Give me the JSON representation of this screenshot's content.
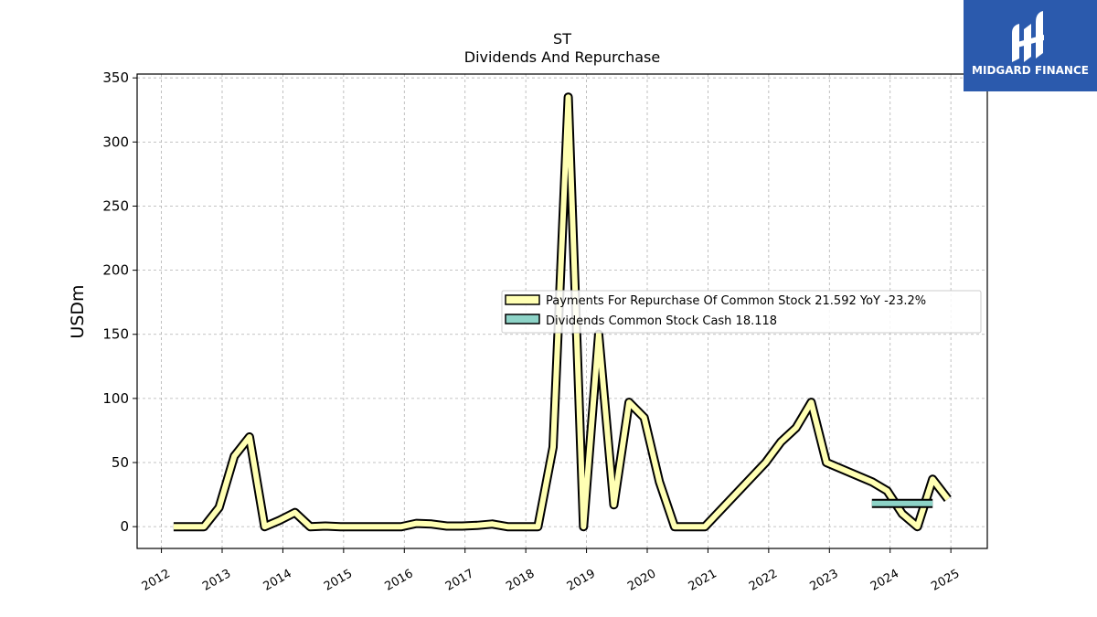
{
  "logo": {
    "text": "MIDGARD FINANCE",
    "bg_color": "#2b5aad"
  },
  "chart_data": {
    "type": "line",
    "title": "ST",
    "subtitle": "Dividends And Repurchase",
    "xlabel": "",
    "ylabel": "USDm",
    "xlim": [
      2011.6,
      2025.6
    ],
    "ylim": [
      -17,
      353
    ],
    "yticks": [
      0,
      50,
      100,
      150,
      200,
      250,
      300,
      350
    ],
    "xticks": [
      2012,
      2013,
      2014,
      2015,
      2016,
      2017,
      2018,
      2019,
      2020,
      2021,
      2022,
      2023,
      2024,
      2025
    ],
    "grid": true,
    "legend_position": "center-right",
    "series": [
      {
        "name": "Payments For Repurchase Of Common Stock  21.592 YoY -23.2%",
        "color": "#ffffb3",
        "edge_color": "#000000",
        "points": [
          [
            2012.2,
            0
          ],
          [
            2012.45,
            0
          ],
          [
            2012.7,
            0
          ],
          [
            2012.95,
            15
          ],
          [
            2013.2,
            55
          ],
          [
            2013.45,
            70
          ],
          [
            2013.7,
            0
          ],
          [
            2013.95,
            5
          ],
          [
            2014.2,
            11
          ],
          [
            2014.45,
            0
          ],
          [
            2014.7,
            0.5
          ],
          [
            2014.95,
            0
          ],
          [
            2015.2,
            0
          ],
          [
            2015.45,
            0
          ],
          [
            2015.7,
            0
          ],
          [
            2015.95,
            0
          ],
          [
            2016.2,
            2.5
          ],
          [
            2016.45,
            2
          ],
          [
            2016.7,
            0.5
          ],
          [
            2016.95,
            0.5
          ],
          [
            2017.2,
            1
          ],
          [
            2017.45,
            2
          ],
          [
            2017.7,
            0
          ],
          [
            2017.95,
            0
          ],
          [
            2018.2,
            0
          ],
          [
            2018.45,
            62
          ],
          [
            2018.7,
            335
          ],
          [
            2018.95,
            0
          ],
          [
            2019.2,
            150
          ],
          [
            2019.45,
            17
          ],
          [
            2019.7,
            97
          ],
          [
            2019.95,
            85
          ],
          [
            2020.2,
            35
          ],
          [
            2020.45,
            0
          ],
          [
            2020.7,
            0
          ],
          [
            2020.95,
            0
          ],
          [
            2021.95,
            50
          ],
          [
            2022.2,
            66
          ],
          [
            2022.45,
            77
          ],
          [
            2022.7,
            97
          ],
          [
            2022.95,
            50
          ],
          [
            2023.7,
            35
          ],
          [
            2023.95,
            28
          ],
          [
            2024.2,
            10
          ],
          [
            2024.45,
            0
          ],
          [
            2024.7,
            37
          ],
          [
            2024.95,
            21.592
          ]
        ]
      },
      {
        "name": "Dividends Common Stock Cash  18.118",
        "color": "#8dd3c7",
        "edge_color": "#000000",
        "points": [
          [
            2023.7,
            18.118
          ],
          [
            2023.95,
            18.118
          ],
          [
            2024.2,
            18.118
          ],
          [
            2024.45,
            18.118
          ],
          [
            2024.7,
            18.118
          ]
        ]
      }
    ]
  }
}
